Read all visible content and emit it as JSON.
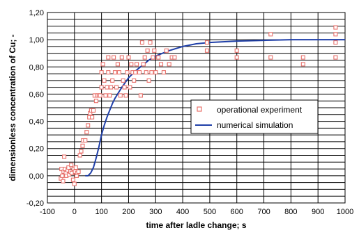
{
  "chart_data": {
    "type": "scatter",
    "xlabel": "time after ladle change; s",
    "ylabel": "dimensionless concentration of Cu; -",
    "xlim": [
      -100,
      1000
    ],
    "ylim": [
      -0.2,
      1.2
    ],
    "x_ticks": [
      "-100",
      "0",
      "100",
      "200",
      "300",
      "400",
      "500",
      "600",
      "700",
      "800",
      "900",
      "1000"
    ],
    "y_ticks": [
      "-0,20",
      "0,00",
      "0,20",
      "0,40",
      "0,60",
      "0,80",
      "1,00",
      "1,20"
    ],
    "grid": true,
    "legend": "right",
    "series": [
      {
        "name": "operational experiment",
        "marker": "square",
        "color": "#e8716b",
        "points": [
          [
            -50,
            -0.02
          ],
          [
            -48,
            0.05
          ],
          [
            -45,
            0.0
          ],
          [
            -42,
            -0.04
          ],
          [
            -40,
            0.03
          ],
          [
            -38,
            0.14
          ],
          [
            -35,
            0.05
          ],
          [
            -32,
            0.02
          ],
          [
            -30,
            0.0
          ],
          [
            -25,
            0.04
          ],
          [
            -22,
            0.06
          ],
          [
            -20,
            0.01
          ],
          [
            -15,
            0.03
          ],
          [
            -12,
            0.08
          ],
          [
            -10,
            0.02
          ],
          [
            -5,
            -0.03
          ],
          [
            -3,
            0.05
          ],
          [
            0,
            -0.06
          ],
          [
            2,
            0.03
          ],
          [
            5,
            0.06
          ],
          [
            8,
            0.0
          ],
          [
            10,
            0.02
          ],
          [
            15,
            0.03
          ],
          [
            20,
            0.15
          ],
          [
            25,
            0.18
          ],
          [
            30,
            0.22
          ],
          [
            32,
            0.26
          ],
          [
            40,
            0.26
          ],
          [
            45,
            0.32
          ],
          [
            50,
            0.37
          ],
          [
            55,
            0.43
          ],
          [
            58,
            0.46
          ],
          [
            62,
            0.48
          ],
          [
            65,
            0.43
          ],
          [
            70,
            0.48
          ],
          [
            75,
            0.59
          ],
          [
            80,
            0.55
          ],
          [
            85,
            0.59
          ],
          [
            90,
            0.59
          ],
          [
            95,
            0.59
          ],
          [
            100,
            0.65
          ],
          [
            100,
            0.76
          ],
          [
            105,
            0.82
          ],
          [
            110,
            0.7
          ],
          [
            115,
            0.59
          ],
          [
            120,
            0.65
          ],
          [
            125,
            0.76
          ],
          [
            125,
            0.87
          ],
          [
            130,
            0.59
          ],
          [
            135,
            0.65
          ],
          [
            140,
            0.7
          ],
          [
            145,
            0.87
          ],
          [
            150,
            0.76
          ],
          [
            155,
            0.65
          ],
          [
            160,
            0.82
          ],
          [
            165,
            0.76
          ],
          [
            170,
            0.59
          ],
          [
            175,
            0.87
          ],
          [
            180,
            0.7
          ],
          [
            185,
            0.65
          ],
          [
            190,
            0.59
          ],
          [
            195,
            0.76
          ],
          [
            200,
            0.87
          ],
          [
            205,
            0.65
          ],
          [
            210,
            0.82
          ],
          [
            215,
            0.76
          ],
          [
            220,
            0.7
          ],
          [
            225,
            0.76
          ],
          [
            230,
            0.82
          ],
          [
            240,
            0.76
          ],
          [
            245,
            0.59
          ],
          [
            250,
            0.98
          ],
          [
            255,
            0.82
          ],
          [
            260,
            0.87
          ],
          [
            265,
            0.76
          ],
          [
            270,
            0.92
          ],
          [
            275,
            0.7
          ],
          [
            280,
            0.98
          ],
          [
            285,
            0.76
          ],
          [
            290,
            0.87
          ],
          [
            295,
            0.92
          ],
          [
            300,
            0.76
          ],
          [
            310,
            0.87
          ],
          [
            320,
            0.82
          ],
          [
            330,
            0.76
          ],
          [
            340,
            0.92
          ],
          [
            350,
            0.82
          ],
          [
            360,
            0.87
          ],
          [
            370,
            0.87
          ],
          [
            490,
            0.92
          ],
          [
            490,
            0.98
          ],
          [
            600,
            0.87
          ],
          [
            600,
            0.92
          ],
          [
            725,
            1.04
          ],
          [
            725,
            0.87
          ],
          [
            845,
            0.87
          ],
          [
            845,
            0.82
          ],
          [
            965,
            1.09
          ],
          [
            965,
            1.04
          ],
          [
            965,
            0.98
          ],
          [
            965,
            0.87
          ]
        ]
      },
      {
        "name": "numerical simulation",
        "marker": "line",
        "color": "#1f3fa8",
        "points": [
          [
            40,
            0.0
          ],
          [
            50,
            0.0
          ],
          [
            60,
            0.02
          ],
          [
            70,
            0.06
          ],
          [
            80,
            0.13
          ],
          [
            90,
            0.21
          ],
          [
            100,
            0.3
          ],
          [
            110,
            0.37
          ],
          [
            120,
            0.43
          ],
          [
            130,
            0.48
          ],
          [
            140,
            0.53
          ],
          [
            150,
            0.57
          ],
          [
            175,
            0.65
          ],
          [
            200,
            0.72
          ],
          [
            225,
            0.77
          ],
          [
            250,
            0.81
          ],
          [
            275,
            0.85
          ],
          [
            300,
            0.88
          ],
          [
            350,
            0.92
          ],
          [
            400,
            0.95
          ],
          [
            450,
            0.97
          ],
          [
            500,
            0.98
          ],
          [
            600,
            0.99
          ],
          [
            700,
            0.995
          ],
          [
            800,
            1.0
          ],
          [
            900,
            1.0
          ],
          [
            1000,
            1.0
          ]
        ]
      }
    ]
  }
}
